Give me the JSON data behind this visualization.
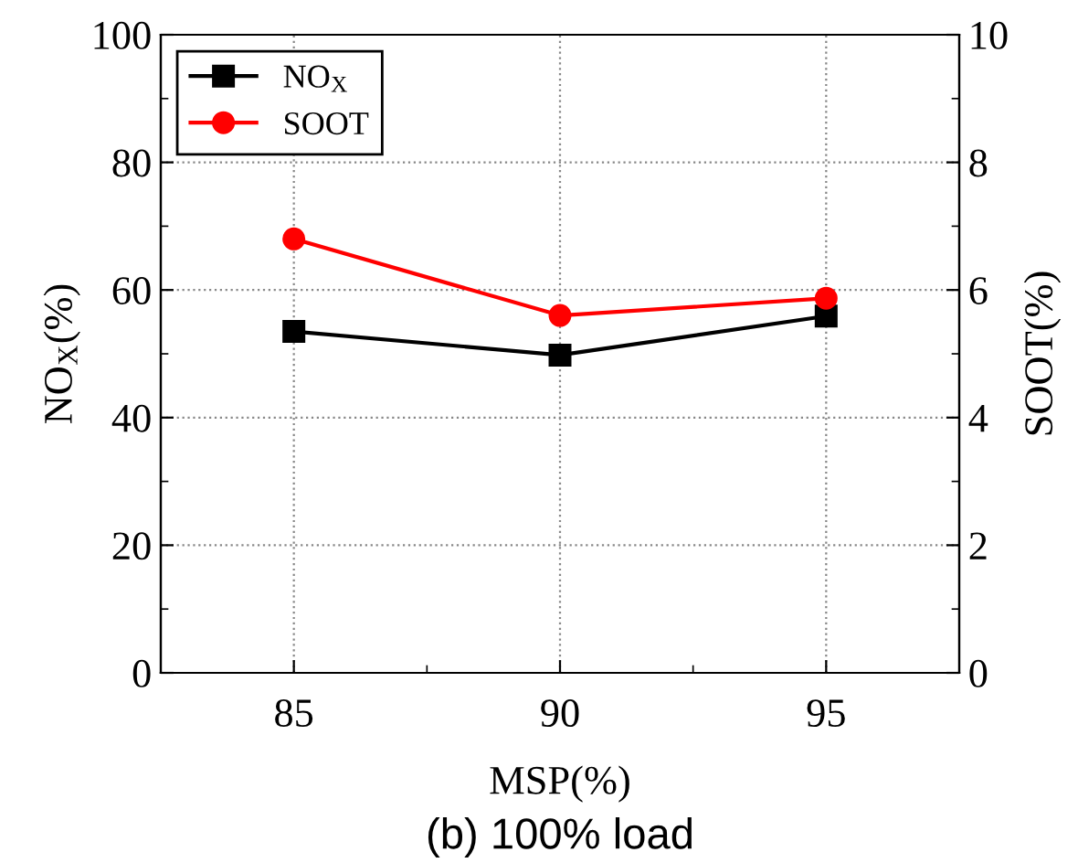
{
  "chart_data": {
    "type": "line",
    "title": "(b) 100% load",
    "xlabel": "MSP(%)",
    "ylabel": "NO$_{X}$(%)",
    "y2label": "SOOT(%)",
    "x": [
      85,
      90,
      95
    ],
    "series": [
      {
        "name": "NO$_{X}$",
        "color": "#000000",
        "marker": "square",
        "values": [
          53.5,
          49.8,
          55.9
        ]
      },
      {
        "name": "SOOT",
        "color": "#ff0000",
        "marker": "circle",
        "axis": "y2",
        "values": [
          6.8,
          5.6,
          5.87
        ]
      }
    ],
    "xlim": [
      82.5,
      97.5
    ],
    "xticks": [
      85,
      90,
      95
    ],
    "ylim": [
      0,
      100
    ],
    "yticks": [
      0,
      20,
      40,
      60,
      80,
      100
    ],
    "y2lim": [
      0,
      10
    ],
    "y2ticks": [
      0,
      2,
      4,
      6,
      8,
      10
    ],
    "grid": true,
    "legend": "top left",
    "line_style": "solid"
  }
}
